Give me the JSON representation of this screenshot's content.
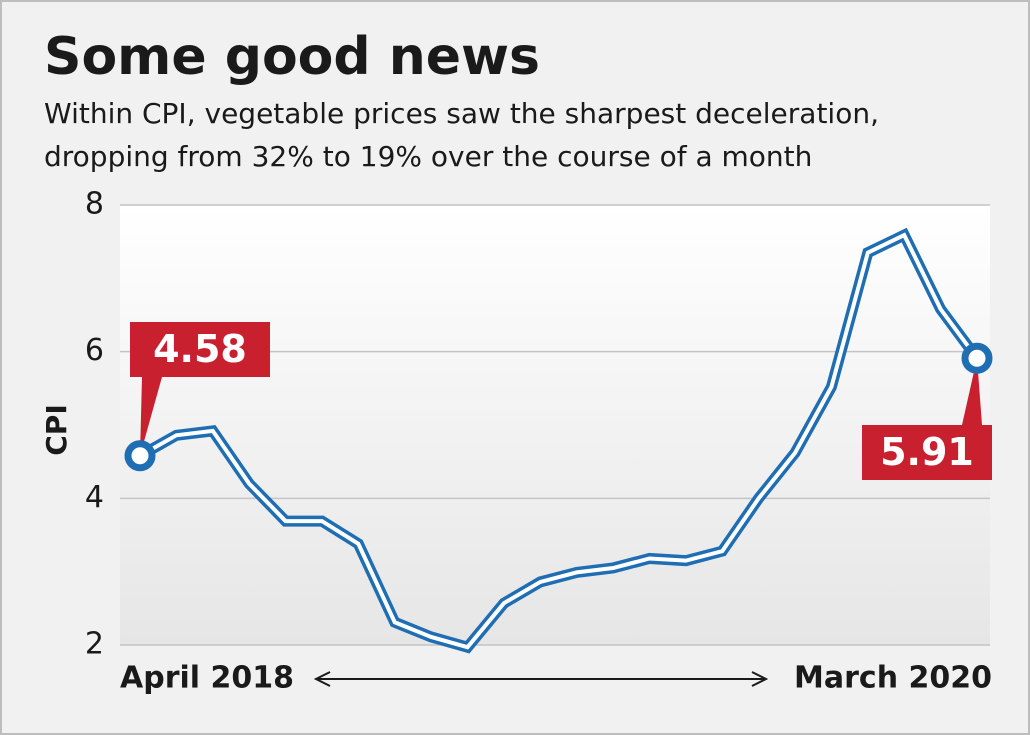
{
  "chart_data": {
    "type": "line",
    "title": "Some good news",
    "subtitle": [
      "Within CPI, vegetable prices saw the sharpest deceleration,",
      "dropping from 32% to 19% over the course of a month"
    ],
    "y_label": "CPI",
    "categories": [
      "April 2018",
      null,
      null,
      null,
      null,
      null,
      null,
      null,
      null,
      null,
      null,
      null,
      null,
      null,
      null,
      null,
      null,
      null,
      null,
      null,
      null,
      null,
      null,
      "March 2020"
    ],
    "series": [
      {
        "name": "CPI",
        "color": "#1f6db3",
        "values": [
          4.58,
          4.86,
          4.92,
          4.2,
          3.69,
          3.69,
          3.38,
          2.31,
          2.11,
          1.97,
          2.57,
          2.86,
          2.99,
          3.05,
          3.18,
          3.15,
          3.28,
          4.0,
          4.62,
          5.52,
          7.35,
          7.59,
          6.58,
          5.91
        ]
      }
    ],
    "ylim": [
      2,
      8
    ],
    "yticks": [
      2,
      4,
      6,
      8
    ],
    "grid": true
  }
}
